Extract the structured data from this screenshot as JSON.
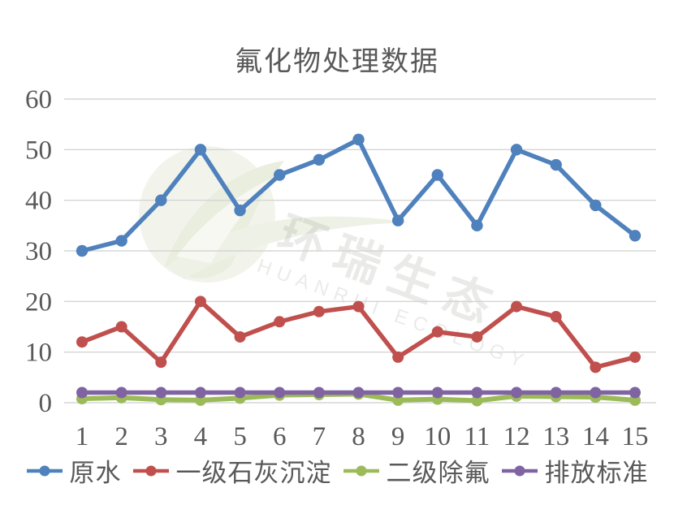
{
  "title": "氟化物处理数据",
  "watermark": {
    "line1": "环瑞生态",
    "line2": "HUANRUI ECOLOGY"
  },
  "colors": {
    "text": "#595959",
    "gridline": "#d5d5d5",
    "background": "#ffffff"
  },
  "chart_data": {
    "type": "line",
    "title": "氟化物处理数据",
    "xlabel": "",
    "ylabel": "",
    "x": [
      1,
      2,
      3,
      4,
      5,
      6,
      7,
      8,
      9,
      10,
      11,
      12,
      13,
      14,
      15
    ],
    "x_tick_labels": [
      "1",
      "2",
      "3",
      "4",
      "5",
      "6",
      "7",
      "8",
      "9",
      "10",
      "11",
      "12",
      "13",
      "14",
      "15"
    ],
    "y_ticks": [
      0,
      10,
      20,
      30,
      40,
      50,
      60
    ],
    "y_tick_labels": [
      "0",
      "10",
      "20",
      "30",
      "40",
      "50",
      "60"
    ],
    "ylim": [
      0,
      60
    ],
    "grid": true,
    "legend_position": "bottom",
    "series": [
      {
        "name": "原水",
        "color": "#4F81BD",
        "values": [
          30,
          32,
          40,
          50,
          38,
          45,
          48,
          52,
          36,
          45,
          35,
          50,
          47,
          39,
          33
        ]
      },
      {
        "name": "一级石灰沉淀",
        "color": "#C0504D",
        "values": [
          12,
          15,
          8,
          20,
          13,
          16,
          18,
          19,
          9,
          14,
          13,
          19,
          17,
          7,
          9
        ]
      },
      {
        "name": "二级除氟",
        "color": "#9BBB59",
        "values": [
          0.8,
          1,
          0.6,
          0.5,
          0.9,
          1.5,
          1.6,
          1.7,
          0.5,
          0.7,
          0.4,
          1.3,
          1.2,
          1.1,
          0.5
        ]
      },
      {
        "name": "排放标准",
        "color": "#8064A2",
        "values": [
          2,
          2,
          2,
          2,
          2,
          2,
          2,
          2,
          2,
          2,
          2,
          2,
          2,
          2,
          2
        ]
      }
    ]
  }
}
